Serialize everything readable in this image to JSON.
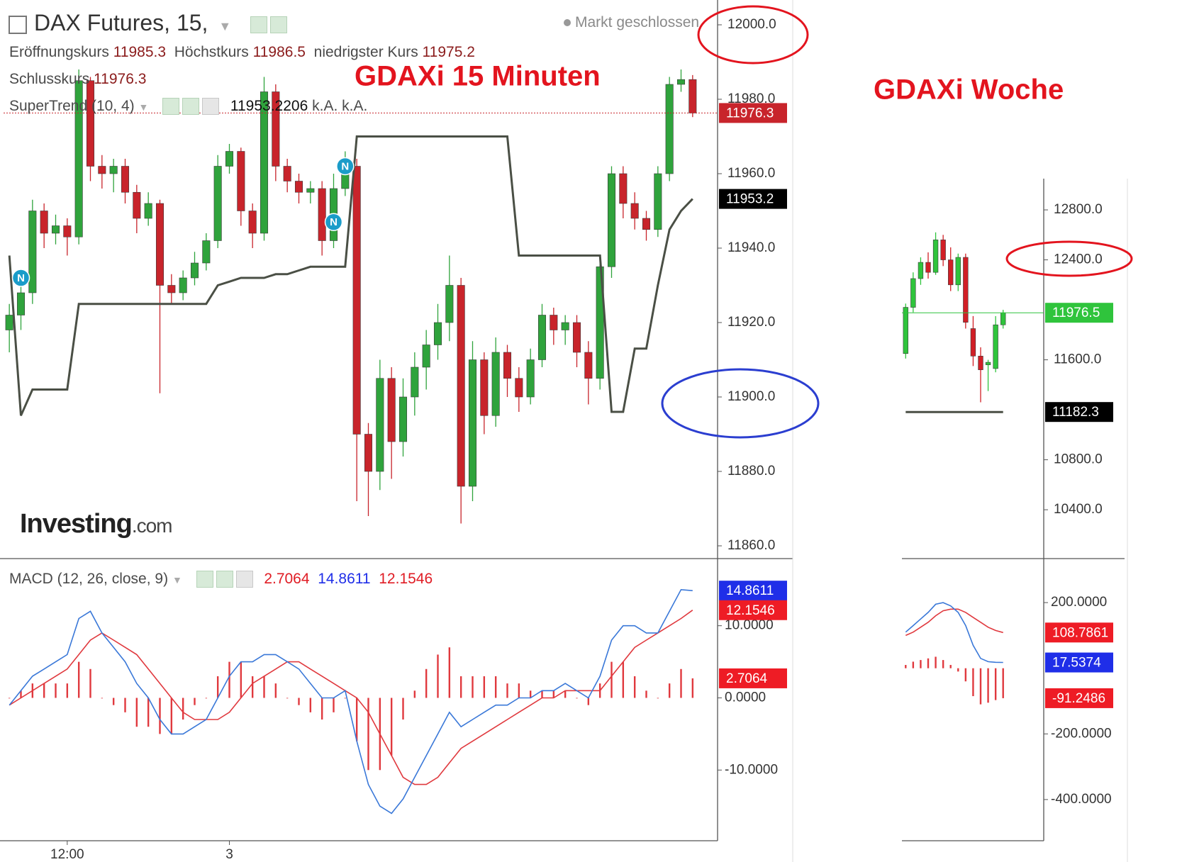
{
  "header": {
    "title": "DAX Futures, 15,",
    "market_status": "Markt geschlossen",
    "open_label": "Eröffnungskurs",
    "high_label": "Höchstkurs",
    "low_label": "niedrigster Kurs",
    "close_label": "Schlusskurs",
    "indicator_na": [
      "k.A.",
      "k.A."
    ],
    "macd_label": "MACD (12, 26, close, 9)"
  },
  "logo": {
    "brand": "Investing",
    "suffix": ".com"
  },
  "chart_data": [
    {
      "type": "candlestick",
      "title": "GDAXi 15 Minuten",
      "categories": [
        null,
        null,
        null,
        null,
        null,
        "12:00",
        null,
        null,
        null,
        null,
        null,
        null,
        null,
        null,
        null,
        null,
        null,
        null,
        null,
        "3",
        null,
        null,
        null,
        null,
        null,
        null,
        null,
        null,
        null,
        null,
        null,
        null,
        null,
        null,
        null,
        null,
        null,
        null,
        null,
        null,
        null,
        null,
        null,
        null,
        null,
        null,
        null,
        null,
        null,
        null,
        null,
        null,
        null,
        null,
        null,
        null,
        null,
        null,
        null,
        null
      ],
      "open": [
        11918,
        11922,
        11928,
        11950,
        11944,
        11946,
        11943,
        11985,
        11962,
        11960,
        11962,
        11955,
        11948,
        11952,
        11930,
        11928,
        11932,
        11936,
        11942,
        11962,
        11966,
        11950,
        11944,
        11982,
        11962,
        11958,
        11955,
        11956,
        11942,
        11956,
        11962,
        11890,
        11880,
        11905,
        11888,
        11900,
        11908,
        11914,
        11920,
        11930,
        11876,
        11910,
        11895,
        11912,
        11905,
        11900,
        11910,
        11922,
        11918,
        11920,
        11912,
        11905,
        11935,
        11960,
        11952,
        11948,
        11945,
        11960,
        11984,
        11985.3
      ],
      "high": [
        11925,
        11931,
        11953,
        11952,
        11949,
        11948,
        11988,
        11986,
        11965,
        11964,
        11964,
        11957,
        11955,
        11953,
        11933,
        11934,
        11939,
        11944,
        11965,
        11968,
        11967,
        11952,
        11986,
        11984,
        11964,
        11960,
        11958,
        11958,
        11960,
        11966,
        11964,
        11893,
        11910,
        11908,
        11905,
        11912,
        11918,
        11925,
        11938,
        11932,
        11915,
        11912,
        11916,
        11914,
        11908,
        11913,
        11925,
        11924,
        11922,
        11922,
        11915,
        11938,
        11962,
        11962,
        11955,
        11950,
        11962,
        11986,
        11988,
        11986.5
      ],
      "low": [
        11912,
        11918,
        11925,
        11940,
        11941,
        11938,
        11941,
        11958,
        11956,
        11955,
        11952,
        11944,
        11946,
        11901,
        11925,
        11926,
        11930,
        11934,
        11940,
        11960,
        11946,
        11940,
        11942,
        11958,
        11955,
        11952,
        11952,
        11938,
        11940,
        11954,
        11872,
        11868,
        11875,
        11878,
        11884,
        11895,
        11902,
        11910,
        11915,
        11866,
        11872,
        11890,
        11892,
        11900,
        11896,
        11898,
        11908,
        11914,
        11914,
        11908,
        11898,
        11902,
        11932,
        11948,
        11945,
        11942,
        11943,
        11958,
        11982,
        11975.2
      ],
      "close": [
        11922,
        11928,
        11950,
        11944,
        11946,
        11943,
        11985,
        11962,
        11960,
        11962,
        11955,
        11948,
        11952,
        11930,
        11928,
        11932,
        11936,
        11942,
        11962,
        11966,
        11950,
        11944,
        11982,
        11962,
        11958,
        11955,
        11956,
        11942,
        11956,
        11962,
        11890,
        11880,
        11905,
        11888,
        11900,
        11908,
        11914,
        11920,
        11930,
        11876,
        11910,
        11895,
        11912,
        11905,
        11900,
        11910,
        11922,
        11918,
        11920,
        11912,
        11905,
        11935,
        11960,
        11952,
        11948,
        11945,
        11960,
        11984,
        11985.3,
        11976.3
      ],
      "up_color": "#2fa33c",
      "down_color": "#c8242b",
      "series": [
        {
          "name": "SuperTrend (10, 4)",
          "color": "#4a4f45",
          "values": [
            11938,
            11895,
            11902,
            11902,
            11902,
            11902,
            11925,
            11925,
            11925,
            11925,
            11925,
            11925,
            11925,
            11925,
            11925,
            11925,
            11925,
            11925,
            11930,
            11931,
            11932,
            11932,
            11932,
            11933,
            11933,
            11934,
            11935,
            11935,
            11935,
            11935,
            11970,
            11970,
            11970,
            11970,
            11970,
            11970,
            11970,
            11970,
            11970,
            11970,
            11970,
            11970,
            11970,
            11970,
            11938,
            11938,
            11938,
            11938,
            11938,
            11938,
            11938,
            11938,
            11896,
            11896,
            11913,
            11913,
            11930,
            11945,
            11950,
            11953.2206
          ],
          "value_labels": [
            null,
            null,
            null,
            null,
            null,
            null,
            null,
            null,
            null,
            null,
            null,
            null,
            null,
            null,
            null,
            null,
            null,
            null,
            null,
            null,
            null,
            null,
            null,
            null,
            null,
            null,
            null,
            null,
            null,
            null,
            null,
            null,
            null,
            null,
            null,
            null,
            null,
            null,
            null,
            null,
            null,
            null,
            null,
            null,
            null,
            null,
            null,
            null,
            null,
            null,
            null,
            null,
            null,
            null,
            null,
            null,
            null,
            null,
            null,
            "11953.2"
          ]
        }
      ],
      "signals": [
        {
          "index": 1,
          "value": 11932,
          "label": "N"
        },
        {
          "index": 28,
          "value": 11947,
          "label": "N"
        },
        {
          "index": 29,
          "value": 11962,
          "label": "N"
        }
      ],
      "ylim": [
        11860,
        12000
      ],
      "yticks": [
        {
          "value": 11860,
          "label": "11860.0"
        },
        {
          "value": 11880,
          "label": "11880.0"
        },
        {
          "value": 11900,
          "label": "11900.0"
        },
        {
          "value": 11920,
          "label": "11920.0"
        },
        {
          "value": 11940,
          "label": "11940.0"
        },
        {
          "value": 11960,
          "label": "11960.0"
        },
        {
          "value": 11980,
          "label": "11980.0"
        },
        {
          "value": 12000,
          "label": "12000.0"
        }
      ]
    },
    {
      "type": "macd",
      "macd": {
        "color": "#3a78d8",
        "values": [
          -1,
          1,
          3,
          4,
          5,
          6,
          11,
          12,
          9,
          7,
          5,
          2,
          0,
          -3,
          -5,
          -5,
          -4,
          -3,
          0,
          3,
          5,
          5,
          6,
          6,
          5,
          4,
          2,
          0,
          0,
          1,
          -6,
          -12,
          -15,
          -16,
          -14,
          -11,
          -8,
          -5,
          -2,
          -4,
          -3,
          -2,
          -1,
          -1,
          0,
          0,
          1,
          1,
          2,
          1,
          0,
          3,
          8,
          10,
          10,
          9,
          9,
          12,
          15,
          14.8611
        ]
      },
      "signal": {
        "color": "#e0393e",
        "values": [
          -1,
          0,
          1,
          2,
          3,
          4,
          6,
          8,
          9,
          8,
          7,
          6,
          4,
          2,
          0,
          -2,
          -3,
          -3,
          -3,
          -2,
          0,
          2,
          3,
          4,
          5,
          5,
          4,
          3,
          2,
          1,
          0,
          -2,
          -5,
          -8,
          -11,
          -12,
          -12,
          -11,
          -9,
          -7,
          -6,
          -5,
          -4,
          -3,
          -2,
          -1,
          0,
          0,
          1,
          1,
          1,
          1,
          3,
          5,
          7,
          8,
          9,
          10,
          11,
          12.1546
        ]
      },
      "histogram": {
        "color": "#e0393e",
        "values": [
          0,
          1,
          2,
          2,
          2,
          2,
          5,
          4,
          0,
          -1,
          -2,
          -4,
          -4,
          -5,
          -5,
          -3,
          -1,
          0,
          3,
          5,
          5,
          3,
          3,
          2,
          0,
          -1,
          -2,
          -3,
          -2,
          0,
          -6,
          -10,
          -10,
          -8,
          -3,
          1,
          4,
          6,
          7,
          3,
          3,
          3,
          3,
          2,
          2,
          1,
          1,
          1,
          1,
          0,
          -1,
          2,
          5,
          5,
          3,
          1,
          0,
          2,
          4,
          2.7064
        ]
      },
      "box_colors": {
        "macd": "#1f2ee8",
        "signal": "#ee1c25",
        "histogram": "#ee1c25"
      },
      "ylim": [
        -19.5,
        19.3
      ],
      "yticks": [
        {
          "value": -10,
          "label": "-10.0000"
        },
        {
          "value": 0,
          "label": "0.0000"
        },
        {
          "value": 10,
          "label": "10.0000"
        }
      ]
    },
    {
      "type": "candlestick",
      "title": "GDAXi Woche",
      "open": [
        11650,
        12020,
        12250,
        12380,
        12300,
        12560,
        12400,
        12200,
        12420,
        11850,
        11630,
        11560,
        11530,
        11880
      ],
      "high": [
        12050,
        12300,
        12420,
        12460,
        12620,
        12600,
        12500,
        12450,
        12450,
        11950,
        11700,
        11600,
        11950,
        12000
      ],
      "low": [
        11610,
        11980,
        12200,
        12250,
        12280,
        12350,
        12150,
        12150,
        11850,
        11550,
        11260,
        11350,
        11500,
        11850
      ],
      "close": [
        12020,
        12250,
        12380,
        12300,
        12560,
        12400,
        12200,
        12420,
        11900,
        11630,
        11520,
        11580,
        11880,
        11976.5
      ],
      "up_color": "#2fc43c",
      "down_color": "#d11f26",
      "series": [
        {
          "color": "#4a4f45",
          "values": [
            11182.3,
            11182.3,
            11182.3,
            11182.3,
            11182.3,
            11182.3,
            11182.3,
            11182.3,
            11182.3,
            11182.3,
            11182.3,
            11182.3,
            11182.3,
            11182.3
          ]
        }
      ],
      "ylim": [
        10043,
        13050
      ],
      "yticks": [
        {
          "value": 10400,
          "label": "10400.0"
        },
        {
          "value": 10800,
          "label": "10800.0"
        },
        {
          "value": 11600,
          "label": "11600.0"
        },
        {
          "value": 12400,
          "label": "12400.0"
        },
        {
          "value": 12800,
          "label": "12800.0"
        }
      ]
    },
    {
      "type": "macd",
      "macd": {
        "color": "#3a78d8",
        "values": [
          110,
          130,
          150,
          170,
          195,
          200,
          190,
          170,
          130,
          70,
          30,
          20,
          18,
          17.5374
        ]
      },
      "signal": {
        "color": "#e0393e",
        "values": [
          100,
          110,
          125,
          140,
          160,
          175,
          180,
          180,
          170,
          155,
          140,
          125,
          115,
          108.7861
        ]
      },
      "histogram": {
        "color": "#e0393e",
        "values": [
          10,
          20,
          25,
          30,
          35,
          25,
          10,
          -10,
          -40,
          -85,
          -110,
          -105,
          -97,
          -91.2486
        ]
      },
      "box_colors": {
        "macd": "#1f2ee8",
        "signal": "#ee1c25",
        "histogram": "#ee1c25"
      },
      "ylim": [
        -519,
        334
      ],
      "yticks": [
        {
          "value": -400,
          "label": "-400.0000"
        },
        {
          "value": -200,
          "label": "-200.0000"
        },
        {
          "value": 200,
          "label": "200.0000"
        }
      ]
    }
  ]
}
